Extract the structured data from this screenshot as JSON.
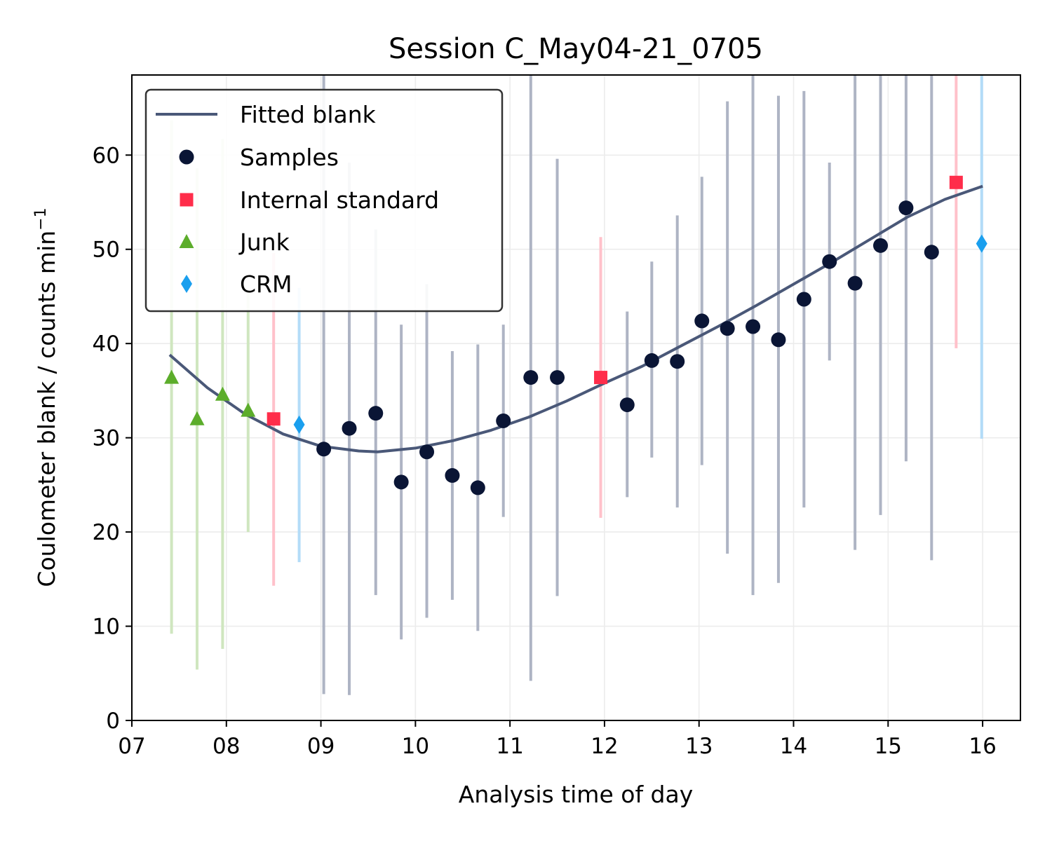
{
  "chart_data": {
    "type": "scatter",
    "title": "Session C_May04-21_0705",
    "xlabel": "Analysis time of day",
    "ylabel_main": "Coulometer blank / counts min",
    "ylabel_sup": "−1",
    "xlim": [
      7.0,
      16.4
    ],
    "ylim": [
      0,
      68.5
    ],
    "x_ticks": [
      7,
      8,
      9,
      10,
      11,
      12,
      13,
      14,
      15,
      16
    ],
    "x_tick_labels": [
      "07",
      "08",
      "09",
      "10",
      "11",
      "12",
      "13",
      "14",
      "15",
      "16"
    ],
    "y_ticks": [
      0,
      10,
      20,
      30,
      40,
      50,
      60
    ],
    "y_tick_labels": [
      "0",
      "10",
      "20",
      "30",
      "40",
      "50",
      "60"
    ],
    "grid": true,
    "legend_position": "top-left",
    "legend": [
      "Fitted blank",
      "Samples",
      "Internal standard",
      "Junk",
      "CRM"
    ],
    "series": [
      {
        "name": "Fitted blank",
        "kind": "line",
        "color": "#4a5878",
        "x": [
          7.4,
          7.8,
          8.2,
          8.6,
          9.0,
          9.4,
          9.6,
          10.0,
          10.4,
          10.8,
          11.2,
          11.6,
          12.0,
          12.4,
          12.8,
          13.2,
          13.6,
          14.0,
          14.4,
          14.8,
          15.2,
          15.6,
          16.0
        ],
        "y": [
          38.8,
          35.3,
          32.5,
          30.4,
          29.1,
          28.6,
          28.5,
          28.9,
          29.7,
          30.8,
          32.2,
          33.9,
          35.8,
          37.6,
          39.7,
          41.8,
          44.0,
          46.3,
          48.6,
          51.0,
          53.4,
          55.3,
          56.7
        ]
      },
      {
        "name": "Samples",
        "kind": "scatter",
        "marker": "circle",
        "color": "#0a1535",
        "errcolor": "#aeb4c4",
        "points": [
          {
            "x": 9.03,
            "y": 28.8,
            "lo": 2.8,
            "hi": 68.5
          },
          {
            "x": 9.3,
            "y": 31.0,
            "lo": 2.7,
            "hi": 59.2
          },
          {
            "x": 9.58,
            "y": 32.6,
            "lo": 13.3,
            "hi": 52.1
          },
          {
            "x": 9.85,
            "y": 25.3,
            "lo": 8.6,
            "hi": 42.0
          },
          {
            "x": 10.12,
            "y": 28.5,
            "lo": 10.9,
            "hi": 46.3
          },
          {
            "x": 10.39,
            "y": 26.0,
            "lo": 12.8,
            "hi": 39.2
          },
          {
            "x": 10.66,
            "y": 24.7,
            "lo": 9.5,
            "hi": 39.9
          },
          {
            "x": 10.93,
            "y": 31.8,
            "lo": 21.6,
            "hi": 42.0
          },
          {
            "x": 11.22,
            "y": 36.4,
            "lo": 4.2,
            "hi": 68.5
          },
          {
            "x": 11.5,
            "y": 36.4,
            "lo": 13.2,
            "hi": 59.6
          },
          {
            "x": 12.24,
            "y": 33.5,
            "lo": 23.7,
            "hi": 43.4
          },
          {
            "x": 12.5,
            "y": 38.2,
            "lo": 27.9,
            "hi": 48.7
          },
          {
            "x": 12.77,
            "y": 38.1,
            "lo": 22.6,
            "hi": 53.6
          },
          {
            "x": 13.03,
            "y": 42.4,
            "lo": 27.1,
            "hi": 57.7
          },
          {
            "x": 13.3,
            "y": 41.6,
            "lo": 17.7,
            "hi": 65.7
          },
          {
            "x": 13.57,
            "y": 41.8,
            "lo": 13.3,
            "hi": 68.5
          },
          {
            "x": 13.84,
            "y": 40.4,
            "lo": 14.6,
            "hi": 66.3
          },
          {
            "x": 14.11,
            "y": 44.7,
            "lo": 22.6,
            "hi": 66.8
          },
          {
            "x": 14.38,
            "y": 48.7,
            "lo": 38.2,
            "hi": 59.2
          },
          {
            "x": 14.65,
            "y": 46.4,
            "lo": 18.1,
            "hi": 68.5
          },
          {
            "x": 14.92,
            "y": 50.4,
            "lo": 21.8,
            "hi": 68.5
          },
          {
            "x": 15.19,
            "y": 54.4,
            "lo": 27.5,
            "hi": 68.5
          },
          {
            "x": 15.46,
            "y": 49.7,
            "lo": 17.0,
            "hi": 68.5
          }
        ]
      },
      {
        "name": "Internal standard",
        "kind": "scatter",
        "marker": "square",
        "color": "#ff2d4a",
        "errcolor": "#ffc1ca",
        "points": [
          {
            "x": 8.5,
            "y": 32.0,
            "lo": 14.3,
            "hi": 49.6
          },
          {
            "x": 11.96,
            "y": 36.4,
            "lo": 21.5,
            "hi": 51.3
          },
          {
            "x": 15.72,
            "y": 57.1,
            "lo": 39.5,
            "hi": 68.5
          }
        ]
      },
      {
        "name": "Junk",
        "kind": "scatter",
        "marker": "triangle",
        "color": "#5cad2b",
        "errcolor": "#cfe6bf",
        "points": [
          {
            "x": 7.42,
            "y": 36.4,
            "lo": 9.2,
            "hi": 63.7
          },
          {
            "x": 7.69,
            "y": 32.0,
            "lo": 5.4,
            "hi": 58.6
          },
          {
            "x": 7.96,
            "y": 34.6,
            "lo": 7.6,
            "hi": 61.7
          },
          {
            "x": 8.23,
            "y": 32.9,
            "lo": 20.0,
            "hi": 45.6
          }
        ]
      },
      {
        "name": "CRM",
        "kind": "scatter",
        "marker": "diamond",
        "color": "#1a9fee",
        "errcolor": "#b3dcf8",
        "points": [
          {
            "x": 8.77,
            "y": 31.4,
            "lo": 16.8,
            "hi": 45.9
          },
          {
            "x": 15.99,
            "y": 50.6,
            "lo": 29.9,
            "hi": 68.5
          }
        ]
      }
    ]
  }
}
